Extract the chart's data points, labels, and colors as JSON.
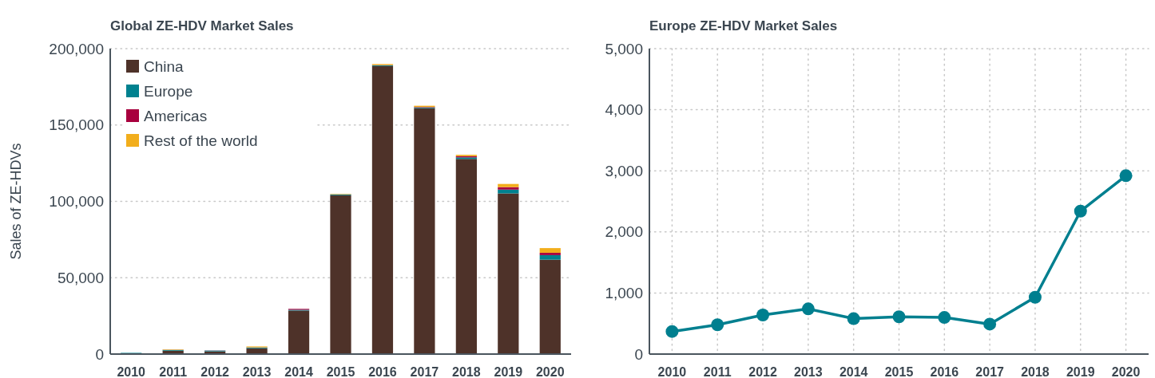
{
  "chart_data": [
    {
      "type": "bar",
      "title": "Global ZE-HDV Market Sales",
      "ylabel": "Sales of ZE-HDVs",
      "stacked": true,
      "categories": [
        "2010",
        "2011",
        "2012",
        "2013",
        "2014",
        "2015",
        "2016",
        "2017",
        "2018",
        "2019",
        "2020"
      ],
      "series": [
        {
          "name": "China",
          "color": "#4e3229",
          "values": [
            300,
            2200,
            1800,
            3800,
            28500,
            104000,
            188500,
            161000,
            127800,
            105200,
            61800
          ]
        },
        {
          "name": "Europe",
          "color": "#00818f",
          "values": [
            500,
            500,
            500,
            500,
            500,
            500,
            500,
            500,
            1000,
            2500,
            3000
          ]
        },
        {
          "name": "Americas",
          "color": "#a8003e",
          "values": [
            0,
            100,
            100,
            100,
            600,
            100,
            200,
            300,
            800,
            1600,
            1500
          ]
        },
        {
          "name": "Rest of the world",
          "color": "#f2ae1c",
          "values": [
            null,
            300,
            null,
            600,
            null,
            300,
            700,
            800,
            900,
            2100,
            3100
          ]
        }
      ],
      "ylim": [
        0,
        200000
      ],
      "yticks": [
        0,
        {
          "value": 50000,
          "label": "50,000"
        },
        {
          "value": 100000,
          "label": "100,000"
        },
        {
          "value": 150000,
          "label": "150,000"
        },
        {
          "value": 200000,
          "label": "200,000"
        }
      ],
      "grid": "y",
      "legend": "top left"
    },
    {
      "type": "line",
      "title": "Europe ZE-HDV Market Sales",
      "categories": [
        "2010",
        "2011",
        "2012",
        "2013",
        "2014",
        "2015",
        "2016",
        "2017",
        "2018",
        "2019",
        "2020"
      ],
      "series": [
        {
          "color": "#007f8f",
          "values": [
            370,
            480,
            640,
            740,
            580,
            610,
            600,
            490,
            930,
            2340,
            2920
          ]
        }
      ],
      "ylim": [
        0,
        5000
      ],
      "yticks": [
        0,
        {
          "value": 1000,
          "label": "1,000"
        },
        {
          "value": 2000,
          "label": "2,000"
        },
        {
          "value": 3000,
          "label": "3,000"
        },
        {
          "value": 4000,
          "label": "4,000"
        },
        {
          "value": 5000,
          "label": "5,000"
        }
      ],
      "grid": true,
      "marker": "circle",
      "line_style": "solid"
    }
  ]
}
